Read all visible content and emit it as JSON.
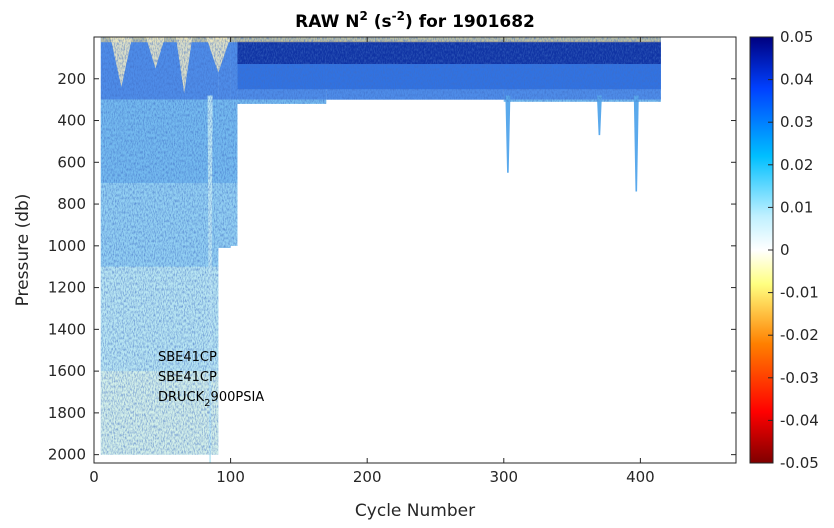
{
  "chart_data": {
    "type": "heatmap",
    "title": "RAW N² (s⁻²) for 1901682",
    "title_parts": {
      "main": "RAW N",
      "sup1": "2",
      "mid": " (s",
      "sup2": "-2",
      "end": ") for 1901682"
    },
    "xlabel": "Cycle Number",
    "ylabel": "Pressure (db)",
    "xlim": [
      0,
      470
    ],
    "ylim": [
      2040,
      0
    ],
    "y_reversed": true,
    "xticks": [
      0,
      100,
      200,
      300,
      400
    ],
    "yticks": [
      200,
      400,
      600,
      800,
      1000,
      1200,
      1400,
      1600,
      1800,
      2000
    ],
    "colorbar": {
      "min": -0.05,
      "max": 0.05,
      "ticks": [
        "0.05",
        "0.04",
        "0.03",
        "0.02",
        "0.01",
        "0",
        "-0.01",
        "-0.02",
        "-0.03",
        "-0.04",
        "-0.05"
      ],
      "colormap": [
        "#7f0000",
        "#ff0000",
        "#ff8000",
        "#ffff80",
        "#ffffff",
        "#bff0ff",
        "#00bfff",
        "#0040ff",
        "#00007f"
      ]
    },
    "profile_depth_segments": [
      {
        "cycle_start": 5,
        "cycle_end": 91,
        "max_pressure": 2000
      },
      {
        "cycle_start": 91,
        "cycle_end": 100,
        "max_pressure": 1010
      },
      {
        "cycle_start": 100,
        "cycle_end": 105,
        "max_pressure": 1000
      },
      {
        "cycle_start": 105,
        "cycle_end": 170,
        "max_pressure": 320
      },
      {
        "cycle_start": 170,
        "cycle_end": 300,
        "max_pressure": 300
      },
      {
        "cycle_start": 300,
        "cycle_end": 415,
        "max_pressure": 310
      }
    ],
    "deep_spikes": [
      {
        "cycle": 85,
        "max_pressure": 2040
      },
      {
        "cycle": 303,
        "max_pressure": 650
      },
      {
        "cycle": 370,
        "max_pressure": 470
      },
      {
        "cycle": 397,
        "max_pressure": 740
      }
    ],
    "annotations": [
      "SBE41CP",
      "SBE41CP",
      "DRUCK",
      "2",
      "900PSIA"
    ]
  }
}
